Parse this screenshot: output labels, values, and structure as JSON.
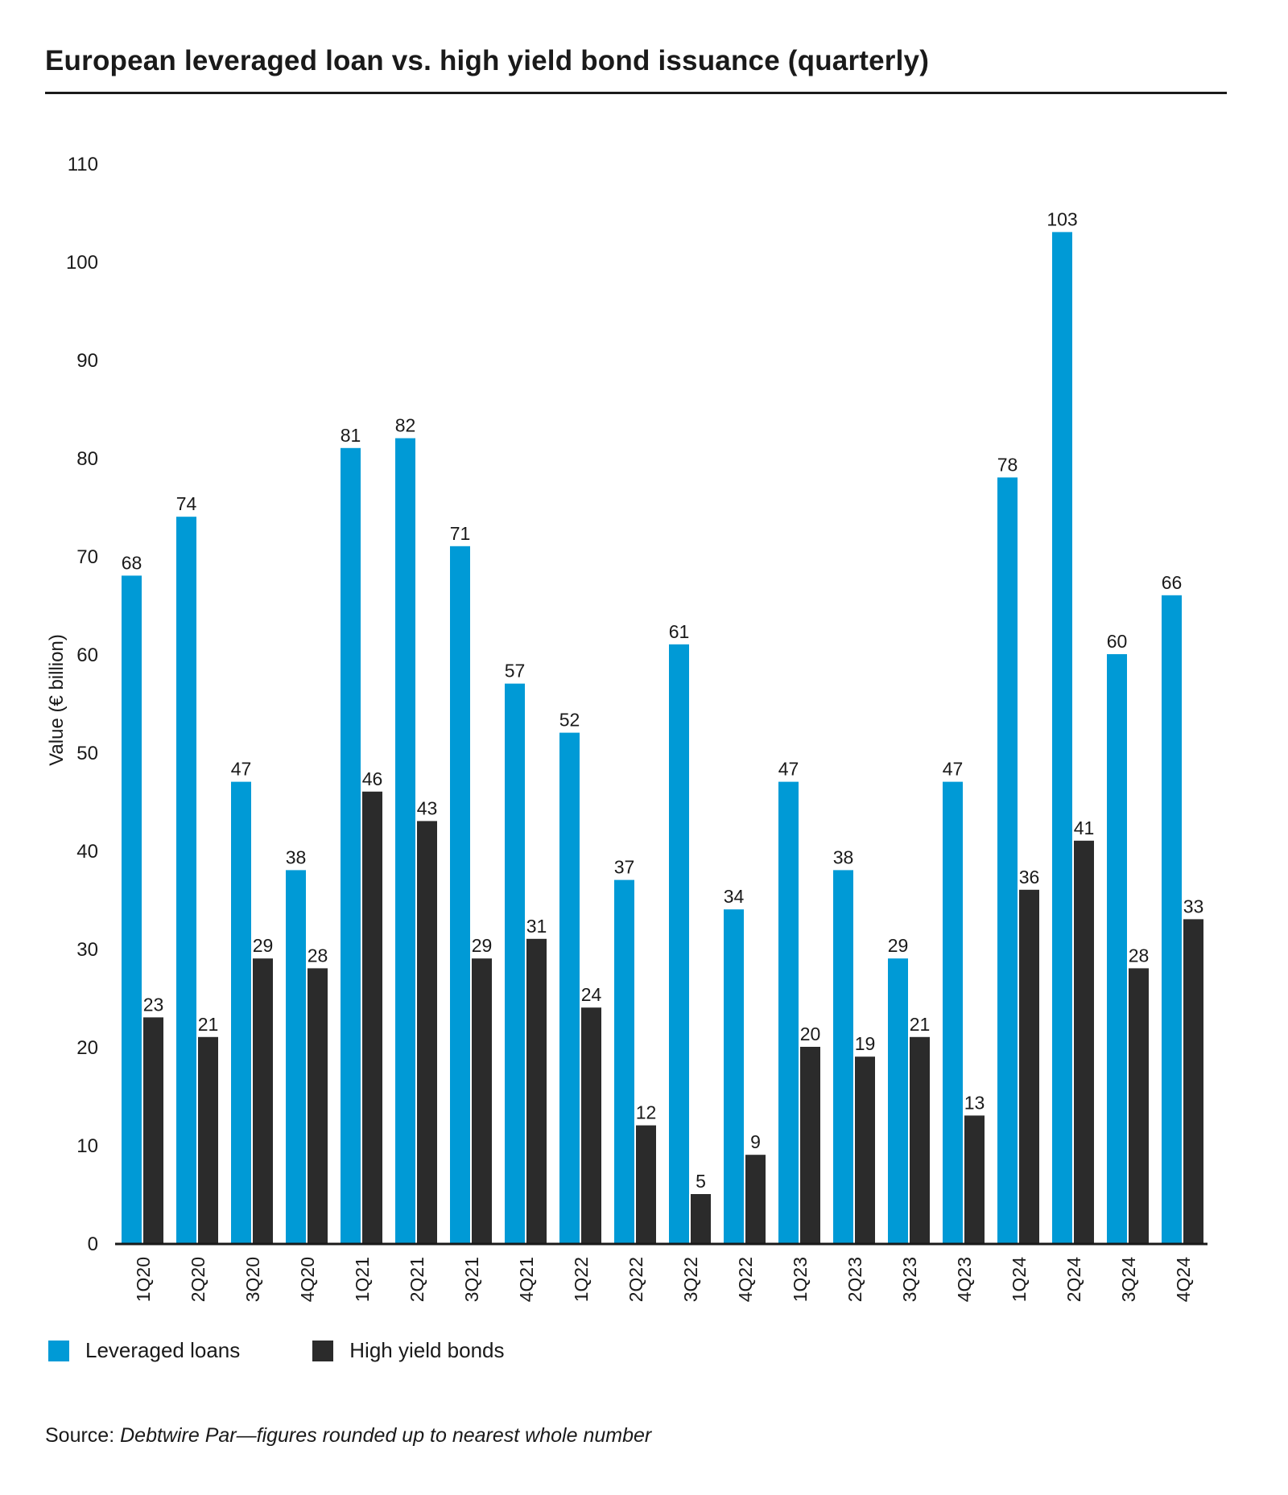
{
  "title": "European leveraged loan vs. high yield bond issuance (quarterly)",
  "source_label": "Source:",
  "source_text": "Debtwire Par—figures rounded up to nearest whole number",
  "colors": {
    "loans": "#009ad6",
    "bonds": "#2b2b2b",
    "axis": "#1a1a1a",
    "text": "#1a1a1a"
  },
  "legend": [
    {
      "label": "Leveraged loans",
      "color": "#009ad6"
    },
    {
      "label": "High yield bonds",
      "color": "#2b2b2b"
    }
  ],
  "chart_data": {
    "type": "bar",
    "title": "European leveraged loan vs. high yield bond issuance (quarterly)",
    "xlabel": "",
    "ylabel": "Value (€ billion)",
    "ylim": [
      0,
      110
    ],
    "yticks": [
      0,
      10,
      20,
      30,
      40,
      50,
      60,
      70,
      80,
      90,
      100,
      110
    ],
    "grid": false,
    "categories": [
      "1Q20",
      "2Q20",
      "3Q20",
      "4Q20",
      "1Q21",
      "2Q21",
      "3Q21",
      "4Q21",
      "1Q22",
      "2Q22",
      "3Q22",
      "4Q22",
      "1Q23",
      "2Q23",
      "3Q23",
      "4Q23",
      "1Q24",
      "2Q24",
      "3Q24",
      "4Q24"
    ],
    "series": [
      {
        "name": "Leveraged loans",
        "color": "#009ad6",
        "values": [
          68,
          74,
          47,
          38,
          81,
          82,
          71,
          57,
          52,
          37,
          61,
          34,
          47,
          38,
          29,
          47,
          78,
          103,
          60,
          66
        ]
      },
      {
        "name": "High yield bonds",
        "color": "#2b2b2b",
        "values": [
          23,
          21,
          29,
          28,
          46,
          43,
          29,
          31,
          24,
          12,
          5,
          9,
          20,
          19,
          21,
          13,
          36,
          41,
          28,
          33
        ]
      }
    ]
  }
}
